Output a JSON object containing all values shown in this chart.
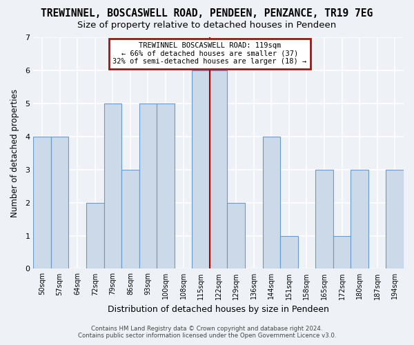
{
  "title": "TREWINNEL, BOSCASWELL ROAD, PENDEEN, PENZANCE, TR19 7EG",
  "subtitle": "Size of property relative to detached houses in Pendeen",
  "xlabel": "Distribution of detached houses by size in Pendeen",
  "ylabel": "Number of detached properties",
  "categories": [
    "50sqm",
    "57sqm",
    "64sqm",
    "72sqm",
    "79sqm",
    "86sqm",
    "93sqm",
    "100sqm",
    "108sqm",
    "115sqm",
    "122sqm",
    "129sqm",
    "136sqm",
    "144sqm",
    "151sqm",
    "158sqm",
    "165sqm",
    "172sqm",
    "180sqm",
    "187sqm",
    "194sqm"
  ],
  "values": [
    4,
    4,
    0,
    2,
    5,
    3,
    5,
    5,
    0,
    6,
    6,
    2,
    0,
    4,
    1,
    0,
    3,
    1,
    3,
    0,
    3
  ],
  "highlight_index": 9,
  "bar_color": "#ccd9e8",
  "bar_edge_color": "#6699cc",
  "highlight_line_color": "#aa0000",
  "ylim": [
    0,
    7
  ],
  "yticks": [
    0,
    1,
    2,
    3,
    4,
    5,
    6,
    7
  ],
  "annotation_title": "TREWINNEL BOSCASWELL ROAD: 119sqm",
  "annotation_line1": "← 66% of detached houses are smaller (37)",
  "annotation_line2": "32% of semi-detached houses are larger (18) →",
  "annotation_box_color": "#ffffff",
  "annotation_border_color": "#cc0000",
  "footer_line1": "Contains HM Land Registry data © Crown copyright and database right 2024.",
  "footer_line2": "Contains public sector information licensed under the Open Government Licence v3.0.",
  "bg_color": "#eef2f7",
  "grid_color": "#ffffff",
  "title_fontsize": 10.5,
  "subtitle_fontsize": 9.5,
  "bar_width": 1.0
}
